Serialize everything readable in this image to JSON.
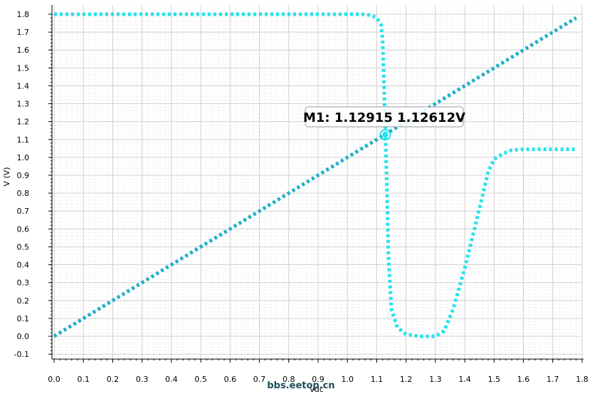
{
  "chart_data": {
    "type": "line",
    "xlabel": "vdc",
    "ylabel": "V (V)",
    "xlim": [
      0.0,
      1.8
    ],
    "ylim": [
      -0.1,
      1.85
    ],
    "x_ticks": [
      "0.0",
      "0.1",
      "0.2",
      "0.3",
      "0.4",
      "0.5",
      "0.6",
      "0.7",
      "0.8",
      "0.9",
      "1.0",
      "1.1",
      "1.2",
      "1.3",
      "1.4",
      "1.5",
      "1.6",
      "1.7",
      "1.8"
    ],
    "y_ticks": [
      "-0.1",
      "0.0",
      "0.1",
      "0.2",
      "0.3",
      "0.4",
      "0.5",
      "0.6",
      "0.7",
      "0.8",
      "0.9",
      "1.0",
      "1.1",
      "1.2",
      "1.3",
      "1.4",
      "1.5",
      "1.6",
      "1.7",
      "1.8"
    ],
    "grid": true,
    "series": [
      {
        "color": "#1fb0c8",
        "style": "dotted",
        "x": [
          0.0,
          1.78
        ],
        "y": [
          0.0,
          1.78
        ]
      },
      {
        "color": "#22e3ef",
        "style": "dotted",
        "x": [
          0.0,
          0.3,
          0.6,
          0.9,
          1.05,
          1.08,
          1.1,
          1.115,
          1.12,
          1.125,
          1.13,
          1.135,
          1.14,
          1.15,
          1.17,
          1.2,
          1.25,
          1.3,
          1.33,
          1.36,
          1.4,
          1.43,
          1.46,
          1.48,
          1.5,
          1.53,
          1.56,
          1.6,
          1.7,
          1.78
        ],
        "y": [
          1.8,
          1.8,
          1.8,
          1.8,
          1.8,
          1.795,
          1.78,
          1.74,
          1.65,
          1.4,
          1.1,
          0.8,
          0.45,
          0.15,
          0.05,
          0.01,
          0.0,
          0.0,
          0.03,
          0.15,
          0.38,
          0.58,
          0.78,
          0.92,
          0.99,
          1.02,
          1.04,
          1.045,
          1.045,
          1.045
        ]
      }
    ],
    "marker": {
      "label": "M1: 1.12915 1.12612V",
      "x": 1.12915,
      "y": 1.12612
    },
    "watermark": "bbs.eetop.cn"
  }
}
